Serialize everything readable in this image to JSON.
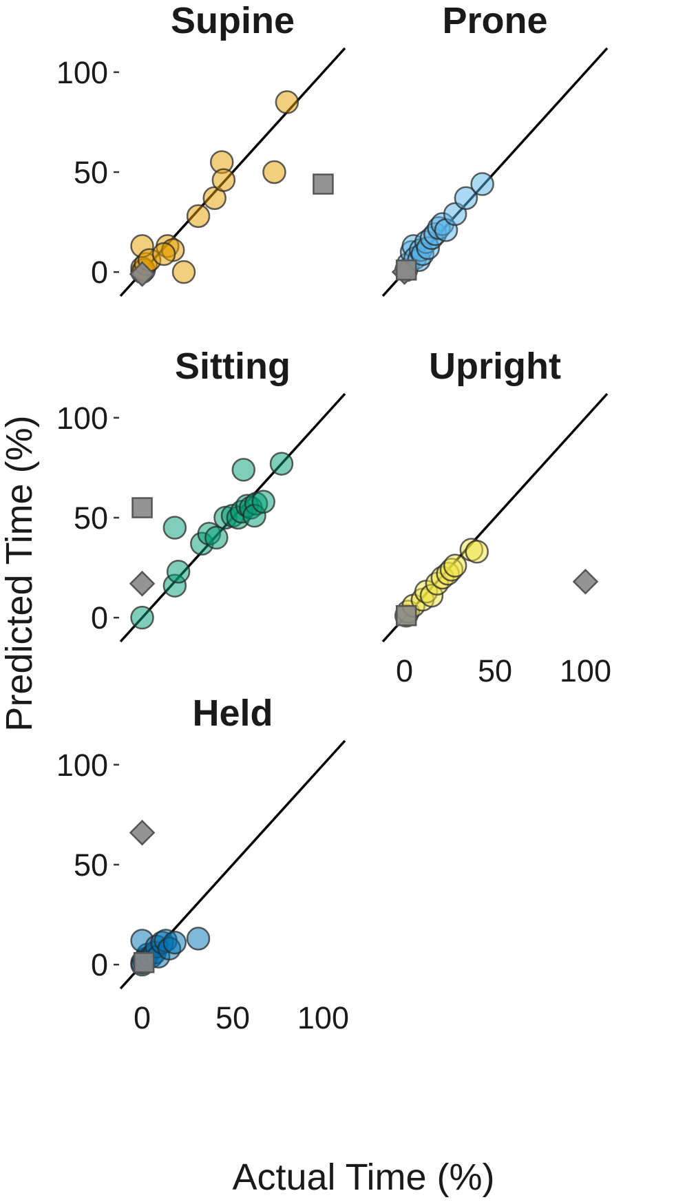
{
  "chart_data": {
    "type": "scatter",
    "xlabel": "Actual Time (%)",
    "ylabel": "Predicted Time (%)",
    "xlim": [
      -12,
      112
    ],
    "ylim": [
      -12,
      112
    ],
    "x_ticks": [
      0,
      50,
      100
    ],
    "y_ticks": [
      0,
      50,
      100
    ],
    "grid": false,
    "reference_line": "y = x",
    "colors": {
      "outlier": "#888888",
      "point_edge": "#2a2a2a",
      "Supine": "#E69F00",
      "Prone": "#56B4E9",
      "Sitting": "#009E73",
      "Upright": "#F0E442",
      "Held": "#0072B2"
    },
    "panels": [
      {
        "title": "Supine",
        "color": "#E69F00",
        "points": [
          {
            "x": 0,
            "y": 0
          },
          {
            "x": 0,
            "y": 2
          },
          {
            "x": 1,
            "y": 1
          },
          {
            "x": 2,
            "y": 4
          },
          {
            "x": 0,
            "y": 13
          },
          {
            "x": 4,
            "y": 6
          },
          {
            "x": 14,
            "y": 13
          },
          {
            "x": 17,
            "y": 11
          },
          {
            "x": 12,
            "y": 9
          },
          {
            "x": 23,
            "y": 0
          },
          {
            "x": 31,
            "y": 28
          },
          {
            "x": 40,
            "y": 37
          },
          {
            "x": 44,
            "y": 55
          },
          {
            "x": 45,
            "y": 46
          },
          {
            "x": 73,
            "y": 50
          },
          {
            "x": 80,
            "y": 85
          }
        ],
        "outliers": [
          {
            "shape": "diamond",
            "x": 0,
            "y": -1
          },
          {
            "shape": "square",
            "x": 100,
            "y": 44
          }
        ]
      },
      {
        "title": "Prone",
        "color": "#56B4E9",
        "points": [
          {
            "x": 1,
            "y": 1
          },
          {
            "x": 2,
            "y": 4
          },
          {
            "x": 4,
            "y": 10
          },
          {
            "x": 5,
            "y": 13
          },
          {
            "x": 6,
            "y": 7
          },
          {
            "x": 8,
            "y": 6
          },
          {
            "x": 9,
            "y": 11
          },
          {
            "x": 10,
            "y": 9
          },
          {
            "x": 12,
            "y": 15
          },
          {
            "x": 13,
            "y": 12
          },
          {
            "x": 15,
            "y": 17
          },
          {
            "x": 17,
            "y": 19
          },
          {
            "x": 19,
            "y": 22
          },
          {
            "x": 21,
            "y": 24
          },
          {
            "x": 23,
            "y": 21
          },
          {
            "x": 28,
            "y": 29
          },
          {
            "x": 34,
            "y": 37
          },
          {
            "x": 43,
            "y": 44
          }
        ],
        "outliers": [
          {
            "shape": "diamond",
            "x": 0,
            "y": 0
          },
          {
            "shape": "square",
            "x": 1,
            "y": 1
          }
        ]
      },
      {
        "title": "Sitting",
        "color": "#009E73",
        "points": [
          {
            "x": 0,
            "y": 0
          },
          {
            "x": 18,
            "y": 16
          },
          {
            "x": 20,
            "y": 23
          },
          {
            "x": 18,
            "y": 45
          },
          {
            "x": 33,
            "y": 37
          },
          {
            "x": 37,
            "y": 42
          },
          {
            "x": 41,
            "y": 40
          },
          {
            "x": 46,
            "y": 50
          },
          {
            "x": 50,
            "y": 51
          },
          {
            "x": 53,
            "y": 50
          },
          {
            "x": 55,
            "y": 53
          },
          {
            "x": 58,
            "y": 56
          },
          {
            "x": 60,
            "y": 55
          },
          {
            "x": 63,
            "y": 57
          },
          {
            "x": 62,
            "y": 51
          },
          {
            "x": 67,
            "y": 58
          },
          {
            "x": 56,
            "y": 74
          },
          {
            "x": 77,
            "y": 77
          }
        ],
        "outliers": [
          {
            "shape": "square",
            "x": 0,
            "y": 55
          },
          {
            "shape": "diamond",
            "x": 0,
            "y": 17
          }
        ]
      },
      {
        "title": "Upright",
        "color": "#F0E442",
        "points": [
          {
            "x": 1,
            "y": 1
          },
          {
            "x": 2,
            "y": 3
          },
          {
            "x": 5,
            "y": 6
          },
          {
            "x": 10,
            "y": 9
          },
          {
            "x": 12,
            "y": 13
          },
          {
            "x": 15,
            "y": 11
          },
          {
            "x": 18,
            "y": 17
          },
          {
            "x": 21,
            "y": 20
          },
          {
            "x": 24,
            "y": 22
          },
          {
            "x": 26,
            "y": 24
          },
          {
            "x": 28,
            "y": 26
          },
          {
            "x": 37,
            "y": 34
          },
          {
            "x": 40,
            "y": 33
          }
        ],
        "outliers": [
          {
            "shape": "diamond",
            "x": 100,
            "y": 18
          },
          {
            "shape": "square",
            "x": 1,
            "y": 1
          }
        ]
      },
      {
        "title": "Held",
        "color": "#0072B2",
        "points": [
          {
            "x": 0,
            "y": 0
          },
          {
            "x": 0,
            "y": 1
          },
          {
            "x": 1,
            "y": 2
          },
          {
            "x": 2,
            "y": 3
          },
          {
            "x": 3,
            "y": 5
          },
          {
            "x": 0,
            "y": 12
          },
          {
            "x": 5,
            "y": 4
          },
          {
            "x": 7,
            "y": 6
          },
          {
            "x": 8,
            "y": 9
          },
          {
            "x": 9,
            "y": 4
          },
          {
            "x": 11,
            "y": 11
          },
          {
            "x": 13,
            "y": 12
          },
          {
            "x": 15,
            "y": 8
          },
          {
            "x": 18,
            "y": 11
          },
          {
            "x": 31,
            "y": 13
          }
        ],
        "outliers": [
          {
            "shape": "diamond",
            "x": 0,
            "y": 66
          },
          {
            "shape": "square",
            "x": 1,
            "y": 1
          }
        ]
      }
    ]
  }
}
